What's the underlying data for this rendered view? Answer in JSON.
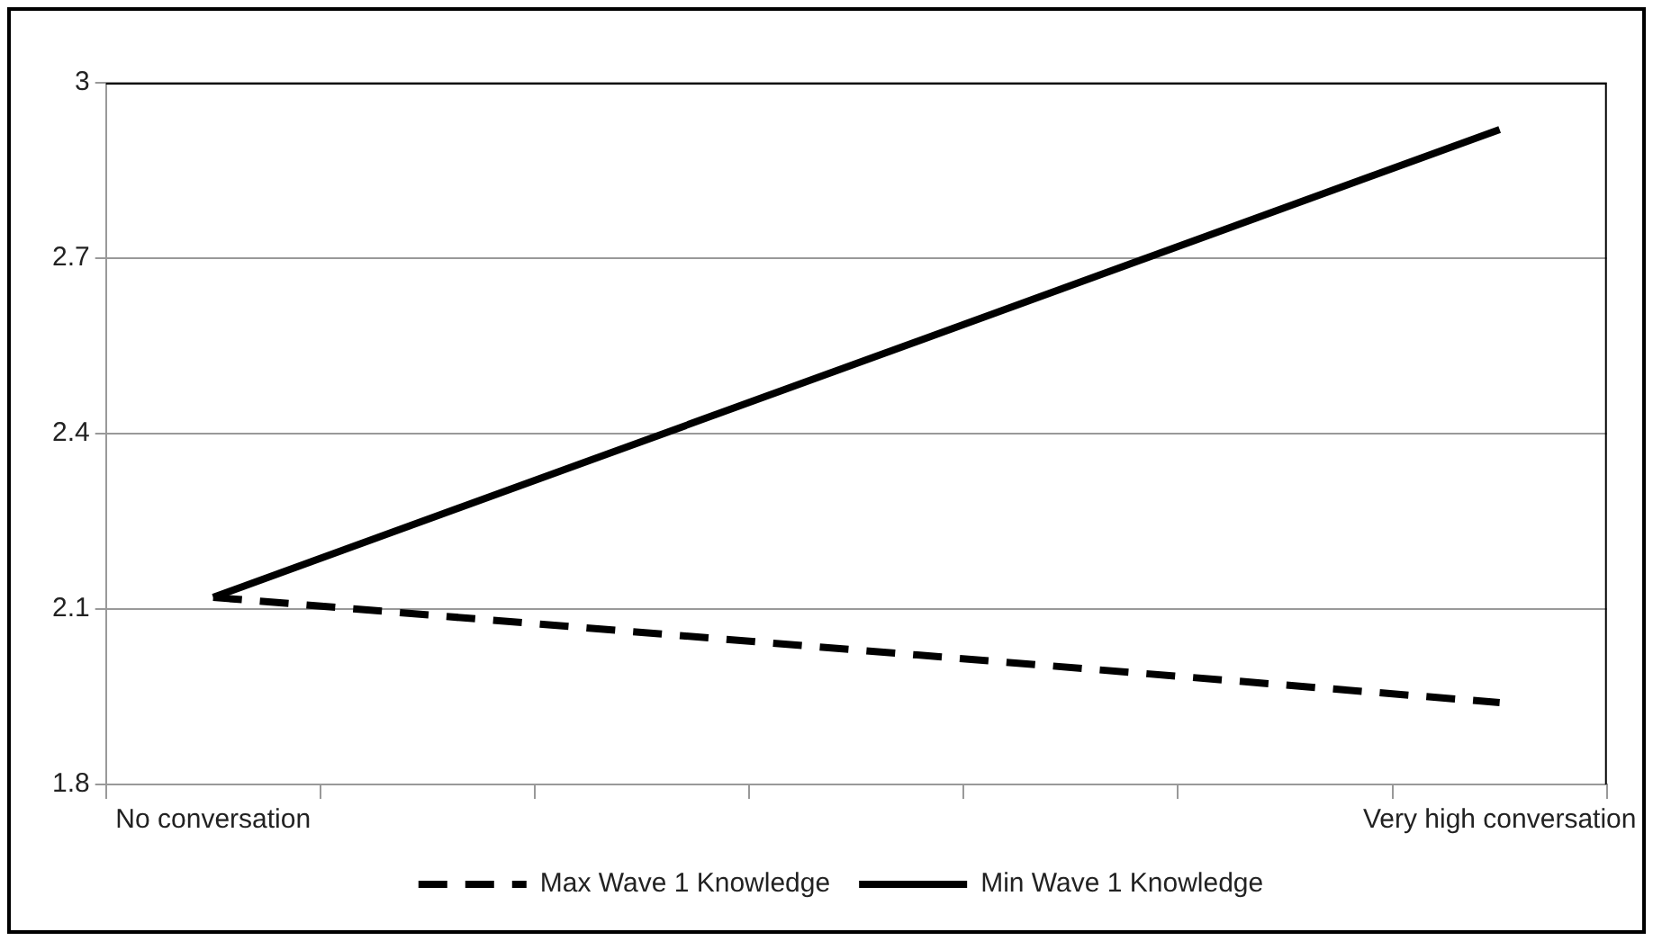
{
  "chart_data": {
    "type": "line",
    "categories": [
      "No conversation",
      null,
      null,
      null,
      null,
      null,
      "Very high conversation"
    ],
    "series": [
      {
        "name": "Max Wave 1 Knowledge",
        "color": "#000000",
        "line_style": "dashed",
        "values": [
          2.12,
          null,
          null,
          null,
          null,
          null,
          1.94
        ]
      },
      {
        "name": "Min Wave 1 Knowledge",
        "color": "#000000",
        "line_style": "solid",
        "values": [
          2.12,
          null,
          null,
          null,
          null,
          null,
          2.92
        ]
      }
    ],
    "ylim": [
      1.8,
      3
    ],
    "yticks": [
      1.8,
      2.1,
      2.4,
      2.7,
      3
    ],
    "grid": "y",
    "legend": "bottom",
    "marker": "none"
  }
}
